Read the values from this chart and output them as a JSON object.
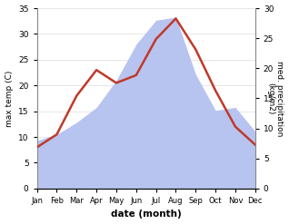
{
  "months": [
    "Jan",
    "Feb",
    "Mar",
    "Apr",
    "May",
    "Jun",
    "Jul",
    "Aug",
    "Sep",
    "Oct",
    "Nov",
    "Dec"
  ],
  "month_x": [
    1,
    2,
    3,
    4,
    5,
    6,
    7,
    8,
    9,
    10,
    11,
    12
  ],
  "temperature": [
    8.0,
    10.5,
    18.0,
    23.0,
    20.5,
    22.0,
    29.0,
    33.0,
    27.0,
    19.0,
    12.0,
    8.5
  ],
  "precipitation": [
    8.0,
    9.0,
    11.0,
    13.5,
    18.0,
    24.0,
    28.0,
    28.5,
    19.0,
    13.0,
    13.5,
    9.5
  ],
  "temp_color": "#c0392b",
  "precip_color": "#b8c4f0",
  "ylim_left": [
    0,
    35
  ],
  "ylim_right": [
    0,
    30
  ],
  "ylabel_left": "max temp (C)",
  "ylabel_right": "med. precipitation\n(kg/m2)",
  "xlabel": "date (month)",
  "background_color": "#ffffff",
  "temp_linewidth": 1.8,
  "left_yticks": [
    0,
    5,
    10,
    15,
    20,
    25,
    30,
    35
  ],
  "right_yticks": [
    0,
    5,
    10,
    15,
    20,
    25,
    30
  ]
}
